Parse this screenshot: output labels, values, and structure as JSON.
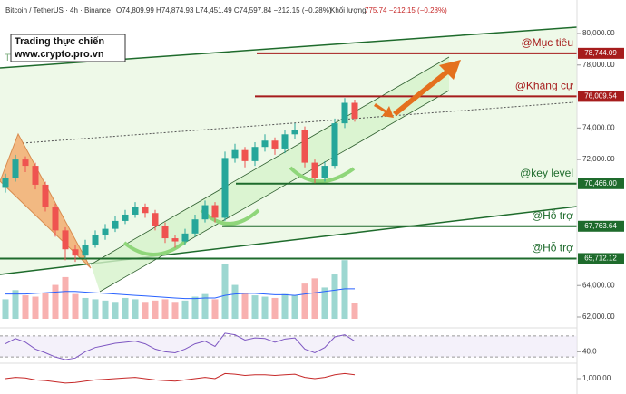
{
  "chart_data": {
    "type": "candlestick",
    "symbol": "Bitcoin / TetherUS · 4h · Binance",
    "ohlc": "O74,809.99 H74,874.93 L74,451.49 C74,597.84 −212.15 (−0.28%)",
    "volume_label": "Khối lượng",
    "volume_info": "775.74 −212.15 (−0.28%)",
    "watermark_title": "Trading thực chiến",
    "watermark_url": "www.crypto.pro.vn",
    "watermark_fragment": "TOPRO",
    "up_color": "#26a69a",
    "down_color": "#ef5350",
    "grid": false,
    "ylim": [
      61310,
      80978
    ],
    "yticks": [
      {
        "value": 80000,
        "label": "80,000.00"
      },
      {
        "value": 78000,
        "label": "78,000.00"
      },
      {
        "value": 74000,
        "label": "74,000.00"
      },
      {
        "value": 72000,
        "label": "72,000.00"
      },
      {
        "value": 64000,
        "label": "64,000.00"
      },
      {
        "value": 62000,
        "label": "62,000.00"
      }
    ],
    "open": [
      70200,
      70800,
      72000,
      71600,
      70400,
      69000,
      67500,
      66300,
      65900,
      66600,
      67200,
      67600,
      68100,
      68500,
      69000,
      68600,
      67800,
      67000,
      66800,
      67300,
      68200,
      69100,
      68300,
      72100,
      72600,
      71900,
      72800,
      73200,
      72700,
      73600,
      73900,
      71800,
      70800,
      71600,
      74300,
      75600
    ],
    "high": [
      71100,
      72300,
      72200,
      71800,
      70600,
      69200,
      67700,
      66600,
      66900,
      67500,
      67900,
      68400,
      68800,
      69300,
      69200,
      68800,
      68000,
      67200,
      67600,
      68500,
      69400,
      69300,
      72500,
      73000,
      72800,
      73100,
      73600,
      73400,
      73900,
      74300,
      74100,
      72000,
      71900,
      74600,
      75900,
      75800
    ],
    "low": [
      69900,
      70600,
      71200,
      70100,
      68700,
      67100,
      65600,
      65500,
      65700,
      66400,
      66900,
      67400,
      67900,
      68300,
      68300,
      67500,
      66700,
      66400,
      66600,
      67100,
      68000,
      68000,
      68100,
      71800,
      71500,
      71600,
      72500,
      72300,
      72400,
      73300,
      71500,
      70500,
      70600,
      71400,
      74000,
      74400
    ],
    "close": [
      70800,
      72000,
      71600,
      70400,
      69000,
      67500,
      66300,
      65900,
      66600,
      67200,
      67600,
      68100,
      68500,
      69000,
      68600,
      67800,
      67000,
      66800,
      67300,
      68200,
      69100,
      68300,
      72100,
      72600,
      71900,
      72800,
      73200,
      72700,
      73600,
      73900,
      71800,
      70800,
      71600,
      74300,
      75600,
      74600
    ],
    "levels": [
      {
        "label": "@Mục tiêu",
        "value": 78744.09,
        "price_label": "78,744.09",
        "color": "#a61c1c"
      },
      {
        "label": "@Kháng cự",
        "value": 76009.54,
        "price_label": "76,009.54",
        "color": "#a61c1c"
      },
      {
        "label": "@key level",
        "value": 70466.0,
        "price_label": "70,466.00",
        "color": "#1e6b2c"
      },
      {
        "label": "@Hỗ trợ",
        "value": 67763.64,
        "price_label": "67,763.64",
        "color": "#1e6b2c"
      },
      {
        "label": "@Hỗ trợ",
        "value": 65712.12,
        "price_label": "65,712.12",
        "color": "#1e6b2c"
      }
    ],
    "volume": {
      "vlim": [
        0,
        5000
      ],
      "values": [
        1500,
        2200,
        1800,
        1700,
        2000,
        2600,
        3200,
        1900,
        1600,
        1500,
        1400,
        1300,
        1600,
        1500,
        1300,
        1400,
        1500,
        1300,
        1400,
        1700,
        1900,
        1500,
        4200,
        2600,
        2000,
        1800,
        1700,
        1600,
        1900,
        1800,
        2700,
        3100,
        2400,
        3400,
        4500,
        1200
      ],
      "ma": [
        1900,
        1900,
        1900,
        1950,
        2000,
        2050,
        2100,
        2100,
        2050,
        2000,
        1950,
        1900,
        1850,
        1800,
        1750,
        1700,
        1650,
        1600,
        1550,
        1550,
        1600,
        1600,
        1800,
        1900,
        1950,
        1950,
        1900,
        1850,
        1850,
        1800,
        1900,
        2000,
        2100,
        2200,
        2300,
        2300
      ],
      "ma_color": "#2962ff"
    },
    "rsi": {
      "ylim": [
        20,
        80
      ],
      "yticks": [
        {
          "value": 40,
          "label": "40.0"
        }
      ],
      "bands": [
        70,
        30
      ],
      "color": "#7e57c2",
      "values": [
        55,
        65,
        58,
        45,
        38,
        30,
        25,
        28,
        40,
        48,
        52,
        56,
        58,
        60,
        55,
        45,
        40,
        38,
        45,
        55,
        60,
        50,
        75,
        72,
        62,
        66,
        65,
        58,
        64,
        66,
        45,
        38,
        48,
        68,
        72,
        60
      ]
    },
    "lower": {
      "ylim": [
        900,
        1100
      ],
      "yticks": [
        {
          "value": 1000,
          "label": "1,000.00"
        }
      ],
      "color": "#c62828",
      "values": [
        1000,
        1010,
        1005,
        990,
        985,
        975,
        965,
        970,
        980,
        990,
        995,
        1000,
        1005,
        1010,
        1000,
        990,
        985,
        980,
        990,
        1000,
        1010,
        1000,
        1040,
        1035,
        1025,
        1030,
        1030,
        1025,
        1030,
        1035,
        1010,
        1000,
        1010,
        1030,
        1040,
        1030
      ]
    }
  }
}
